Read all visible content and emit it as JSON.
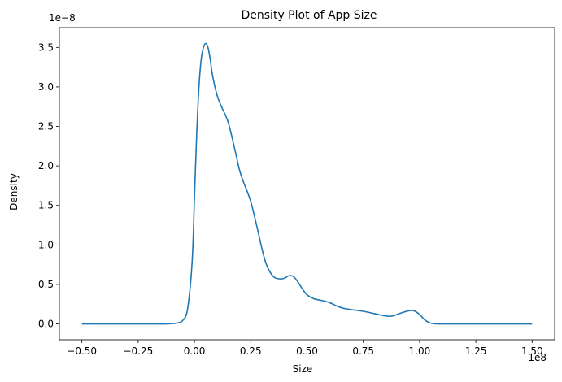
{
  "chart_data": {
    "type": "line",
    "title": "Density Plot of App Size",
    "xlabel": "Size",
    "ylabel": "Density",
    "x_offset_label": "1e8",
    "y_offset_label": "1e−8",
    "xlim": [
      -0.6,
      1.6
    ],
    "ylim": [
      -0.2,
      3.75
    ],
    "x_ticks": [
      -0.5,
      -0.25,
      0.0,
      0.25,
      0.5,
      0.75,
      1.0,
      1.25,
      1.5
    ],
    "x_tick_labels": [
      "−0.50",
      "−0.25",
      "0.00",
      "0.25",
      "0.50",
      "0.75",
      "1.00",
      "1.25",
      "1.50"
    ],
    "y_ticks": [
      0.0,
      0.5,
      1.0,
      1.5,
      2.0,
      2.5,
      3.0,
      3.5
    ],
    "y_tick_labels": [
      "0.0",
      "0.5",
      "1.0",
      "1.5",
      "2.0",
      "2.5",
      "3.0",
      "3.5"
    ],
    "grid": false,
    "series": [
      {
        "color": "#1f77b4",
        "x": [
          -0.5,
          -0.3,
          -0.15,
          -0.08,
          -0.05,
          -0.03,
          -0.01,
          0.0,
          0.01,
          0.02,
          0.03,
          0.04,
          0.05,
          0.06,
          0.07,
          0.08,
          0.1,
          0.12,
          0.15,
          0.18,
          0.2,
          0.22,
          0.25,
          0.28,
          0.3,
          0.32,
          0.35,
          0.38,
          0.4,
          0.42,
          0.44,
          0.46,
          0.48,
          0.5,
          0.53,
          0.56,
          0.6,
          0.63,
          0.66,
          0.7,
          0.75,
          0.8,
          0.85,
          0.88,
          0.9,
          0.93,
          0.96,
          0.98,
          1.0,
          1.02,
          1.04,
          1.06,
          1.08,
          1.12,
          1.2,
          1.3,
          1.4,
          1.5
        ],
        "y": [
          0.0,
          0.0,
          0.0,
          0.01,
          0.05,
          0.2,
          0.8,
          1.6,
          2.4,
          3.0,
          3.35,
          3.5,
          3.55,
          3.5,
          3.35,
          3.15,
          2.9,
          2.75,
          2.55,
          2.2,
          1.95,
          1.78,
          1.55,
          1.2,
          0.95,
          0.75,
          0.6,
          0.57,
          0.58,
          0.61,
          0.6,
          0.53,
          0.44,
          0.37,
          0.32,
          0.3,
          0.27,
          0.23,
          0.2,
          0.18,
          0.16,
          0.13,
          0.1,
          0.1,
          0.12,
          0.15,
          0.17,
          0.16,
          0.12,
          0.06,
          0.02,
          0.005,
          0.0,
          0.0,
          0.0,
          0.0,
          0.0,
          0.0
        ]
      }
    ]
  }
}
